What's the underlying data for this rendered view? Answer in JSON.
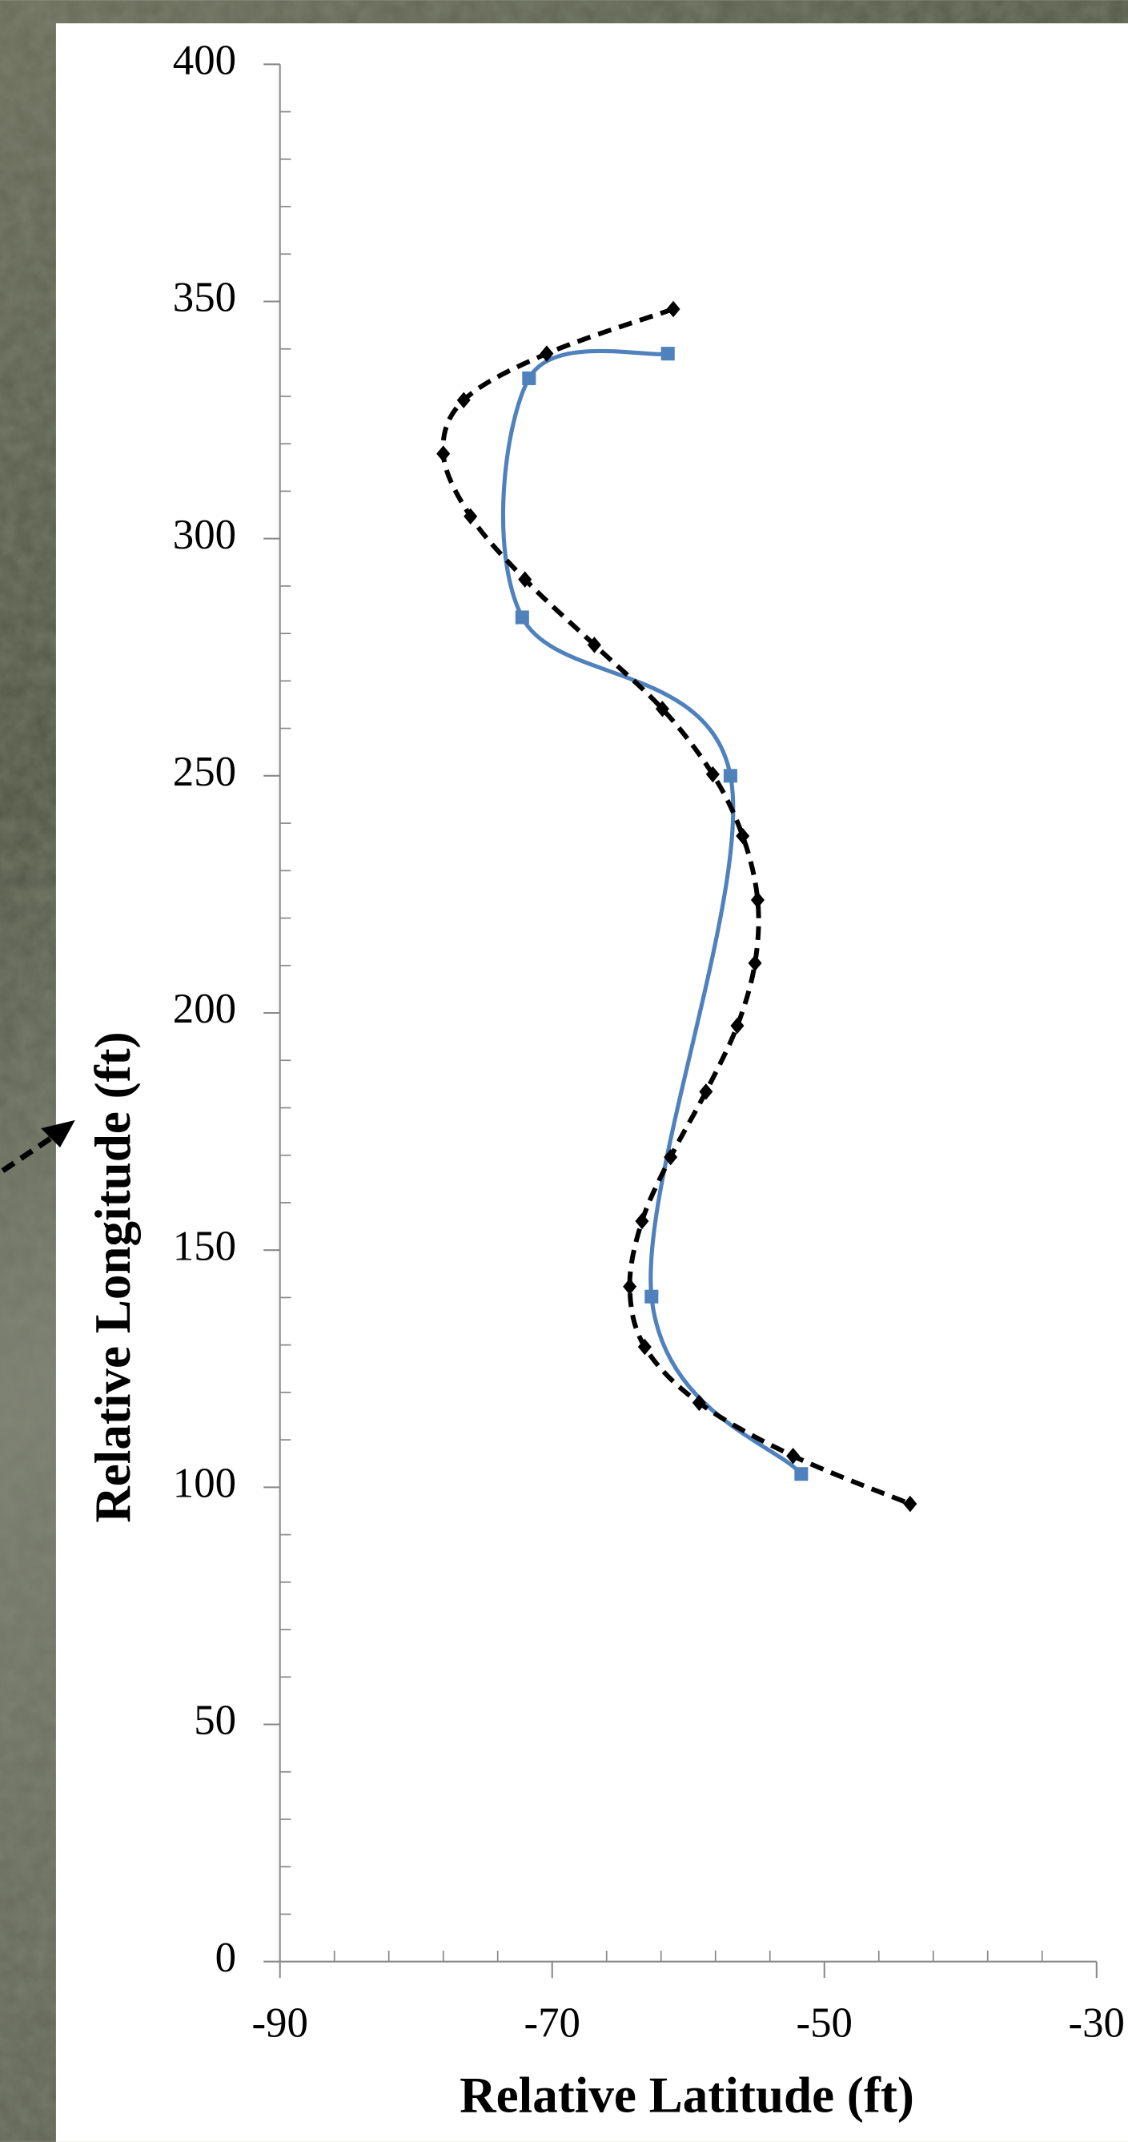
{
  "chart_data": {
    "type": "line",
    "xlabel": "Relative Latitude (ft)",
    "ylabel": "Relative Longitude (ft)",
    "xlim": [
      -90,
      -30
    ],
    "xticks": [
      -90,
      -70,
      -50,
      -30
    ],
    "x_minor_ticks": [
      -86,
      -82,
      -78,
      -74,
      -66,
      -62,
      -58,
      -54,
      -46,
      -42,
      -38,
      -34
    ],
    "ylim": [
      0,
      400
    ],
    "yticks": [
      0,
      50,
      100,
      150,
      200,
      250,
      300,
      350,
      400
    ],
    "y_minor_ticks": [
      10,
      20,
      30,
      40,
      60,
      70,
      80,
      90,
      110,
      120,
      130,
      140,
      160,
      170,
      180,
      190,
      210,
      220,
      230,
      240,
      260,
      270,
      280,
      290,
      310,
      320,
      330,
      340,
      360,
      370,
      380,
      390
    ],
    "series": [
      {
        "color": "#4f81bd",
        "dashed": false,
        "marker": "square",
        "x": [
          -61.5,
          -71.7,
          -72.2,
          -56.9,
          -62.7,
          -51.7
        ],
        "values": [
          339,
          333.8,
          283.4,
          250,
          140.2,
          102.8
        ]
      },
      {
        "color": "#000000",
        "dashed": true,
        "marker": "diamond",
        "x": [
          -61.1,
          -70.4,
          -76.5,
          -78,
          -76,
          -72,
          -66.9,
          -61.9,
          -58.2,
          -56,
          -54.9,
          -55.1,
          -56.4,
          -58.7,
          -61.3,
          -63.4,
          -64.3,
          -63.2,
          -59.2,
          -52.3,
          -43.7
        ],
        "values": [
          348.4,
          339,
          329.2,
          317.9,
          304.7,
          291.4,
          277.6,
          264.1,
          250.3,
          237.3,
          223.8,
          210.5,
          197.3,
          183.4,
          169.6,
          156.1,
          142.3,
          129.6,
          117.8,
          106.6,
          96.5
        ]
      }
    ]
  }
}
